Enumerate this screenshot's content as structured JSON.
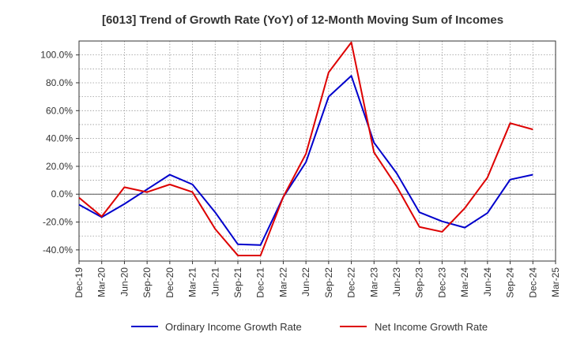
{
  "chart_data": {
    "type": "line",
    "title": "[6013]  Trend of Growth Rate (YoY) of 12-Month Moving Sum of Incomes",
    "xlabel": "",
    "ylabel": "",
    "categories": [
      "Dec-19",
      "Mar-20",
      "Jun-20",
      "Sep-20",
      "Dec-20",
      "Mar-21",
      "Jun-21",
      "Sep-21",
      "Dec-21",
      "Mar-22",
      "Jun-22",
      "Sep-22",
      "Dec-22",
      "Mar-23",
      "Jun-23",
      "Sep-23",
      "Dec-23",
      "Mar-24",
      "Jun-24",
      "Sep-24",
      "Dec-24",
      "Mar-25"
    ],
    "x_tick_labels": [
      "Dec-19",
      "Mar-20",
      "Jun-20",
      "Sep-20",
      "Dec-20",
      "Mar-21",
      "Jun-21",
      "Sep-21",
      "Dec-21",
      "Mar-22",
      "Jun-22",
      "Sep-22",
      "Dec-22",
      "Mar-23",
      "Jun-23",
      "Sep-23",
      "Dec-23",
      "Mar-24",
      "Jun-24",
      "Sep-24",
      "Dec-24",
      "Mar-25"
    ],
    "y_ticks": [
      100,
      80,
      60,
      40,
      20,
      0,
      -20,
      -40
    ],
    "y_tick_labels": [
      "100.0%",
      "80.0%",
      "60.0%",
      "40.0%",
      "20.0%",
      "0.0%",
      "-20.0%",
      "-40.0%"
    ],
    "ylim": [
      -48,
      110
    ],
    "grid": true,
    "legend_position": "bottom",
    "series": [
      {
        "name": "Ordinary Income Growth Rate",
        "color": "#0000cc",
        "values": [
          -7.5,
          -16.5,
          -7,
          3.5,
          14,
          7,
          -13,
          -36,
          -36.5,
          -2,
          23,
          70,
          85,
          37,
          15,
          -13,
          -19.5,
          -24,
          -13.5,
          10.5,
          14,
          null
        ]
      },
      {
        "name": "Net Income Growth Rate",
        "color": "#dd0000",
        "values": [
          -2.5,
          -16,
          5,
          1.5,
          7,
          1.5,
          -25,
          -44,
          -44,
          -2,
          29,
          87.5,
          109,
          30,
          5.5,
          -23.5,
          -27,
          -10,
          12,
          51,
          46.5,
          null
        ]
      }
    ]
  }
}
